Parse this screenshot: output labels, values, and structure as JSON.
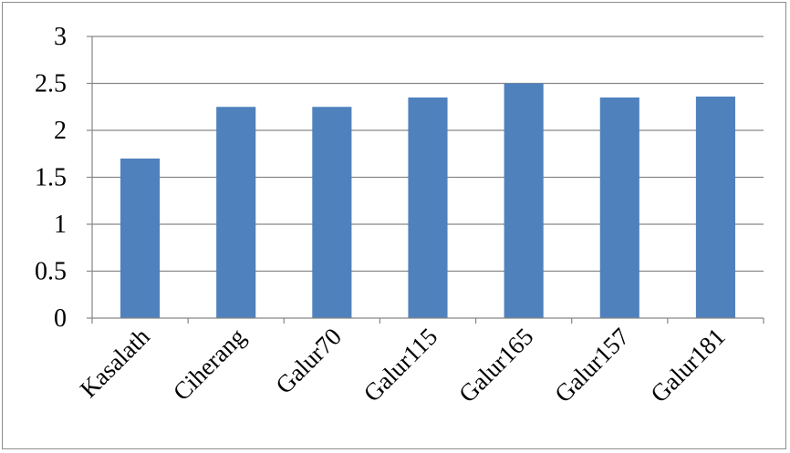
{
  "chart_data": {
    "type": "bar",
    "title": "",
    "xlabel": "",
    "ylabel": "",
    "categories": [
      "Kasalath",
      "Ciherang",
      "Galur70",
      "Galur115",
      "Galur165",
      "Galur157",
      "Galur181"
    ],
    "values": [
      1.7,
      2.25,
      2.25,
      2.35,
      2.5,
      2.35,
      2.36
    ],
    "ylim": [
      0,
      3
    ],
    "yticks": [
      "0",
      "0.5",
      "1",
      "1.5",
      "2",
      "2.5",
      "3"
    ],
    "grid": true,
    "legend": "none",
    "bar_color": "#4f81bd",
    "grid_color": "#868686",
    "axis_color": "#868686"
  }
}
